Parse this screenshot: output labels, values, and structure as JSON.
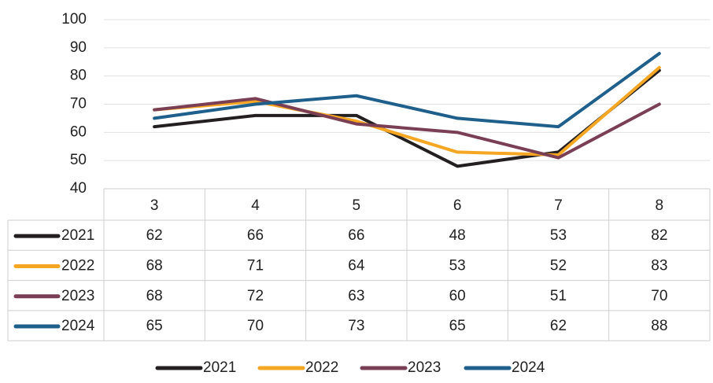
{
  "chart_data": {
    "type": "line",
    "categories": [
      "3",
      "4",
      "5",
      "6",
      "7",
      "8"
    ],
    "series": [
      {
        "name": "2021",
        "color": "#231f20",
        "values": [
          62,
          66,
          66,
          48,
          53,
          82
        ]
      },
      {
        "name": "2022",
        "color": "#f5a623",
        "values": [
          68,
          71,
          64,
          53,
          52,
          83
        ]
      },
      {
        "name": "2023",
        "color": "#7b3f55",
        "values": [
          68,
          72,
          63,
          60,
          51,
          70
        ]
      },
      {
        "name": "2024",
        "color": "#1f5f8b",
        "values": [
          65,
          70,
          73,
          65,
          62,
          88
        ]
      }
    ],
    "ylim": [
      40,
      100
    ],
    "yticks": [
      40,
      50,
      60,
      70,
      80,
      90,
      100
    ],
    "grid": true,
    "data_table": true,
    "legend": "bottom"
  }
}
